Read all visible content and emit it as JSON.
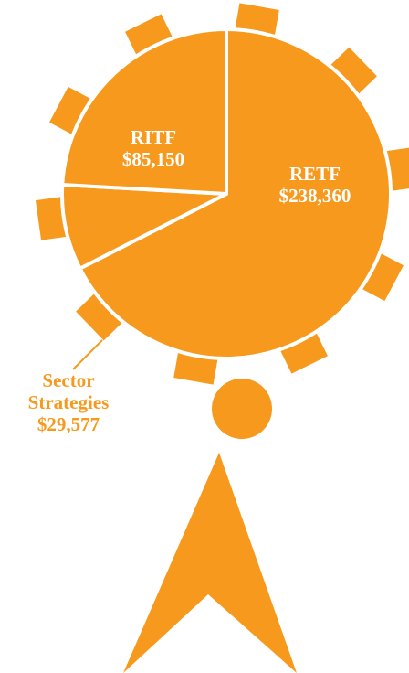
{
  "chart_data": {
    "type": "pie",
    "categories": [
      "RETF",
      "Sector Strategies",
      "RITF"
    ],
    "values": [
      238360,
      29577,
      85150
    ],
    "value_labels": [
      "$238,360",
      "$29,577",
      "$85,150"
    ],
    "color": "#f7991c"
  }
}
